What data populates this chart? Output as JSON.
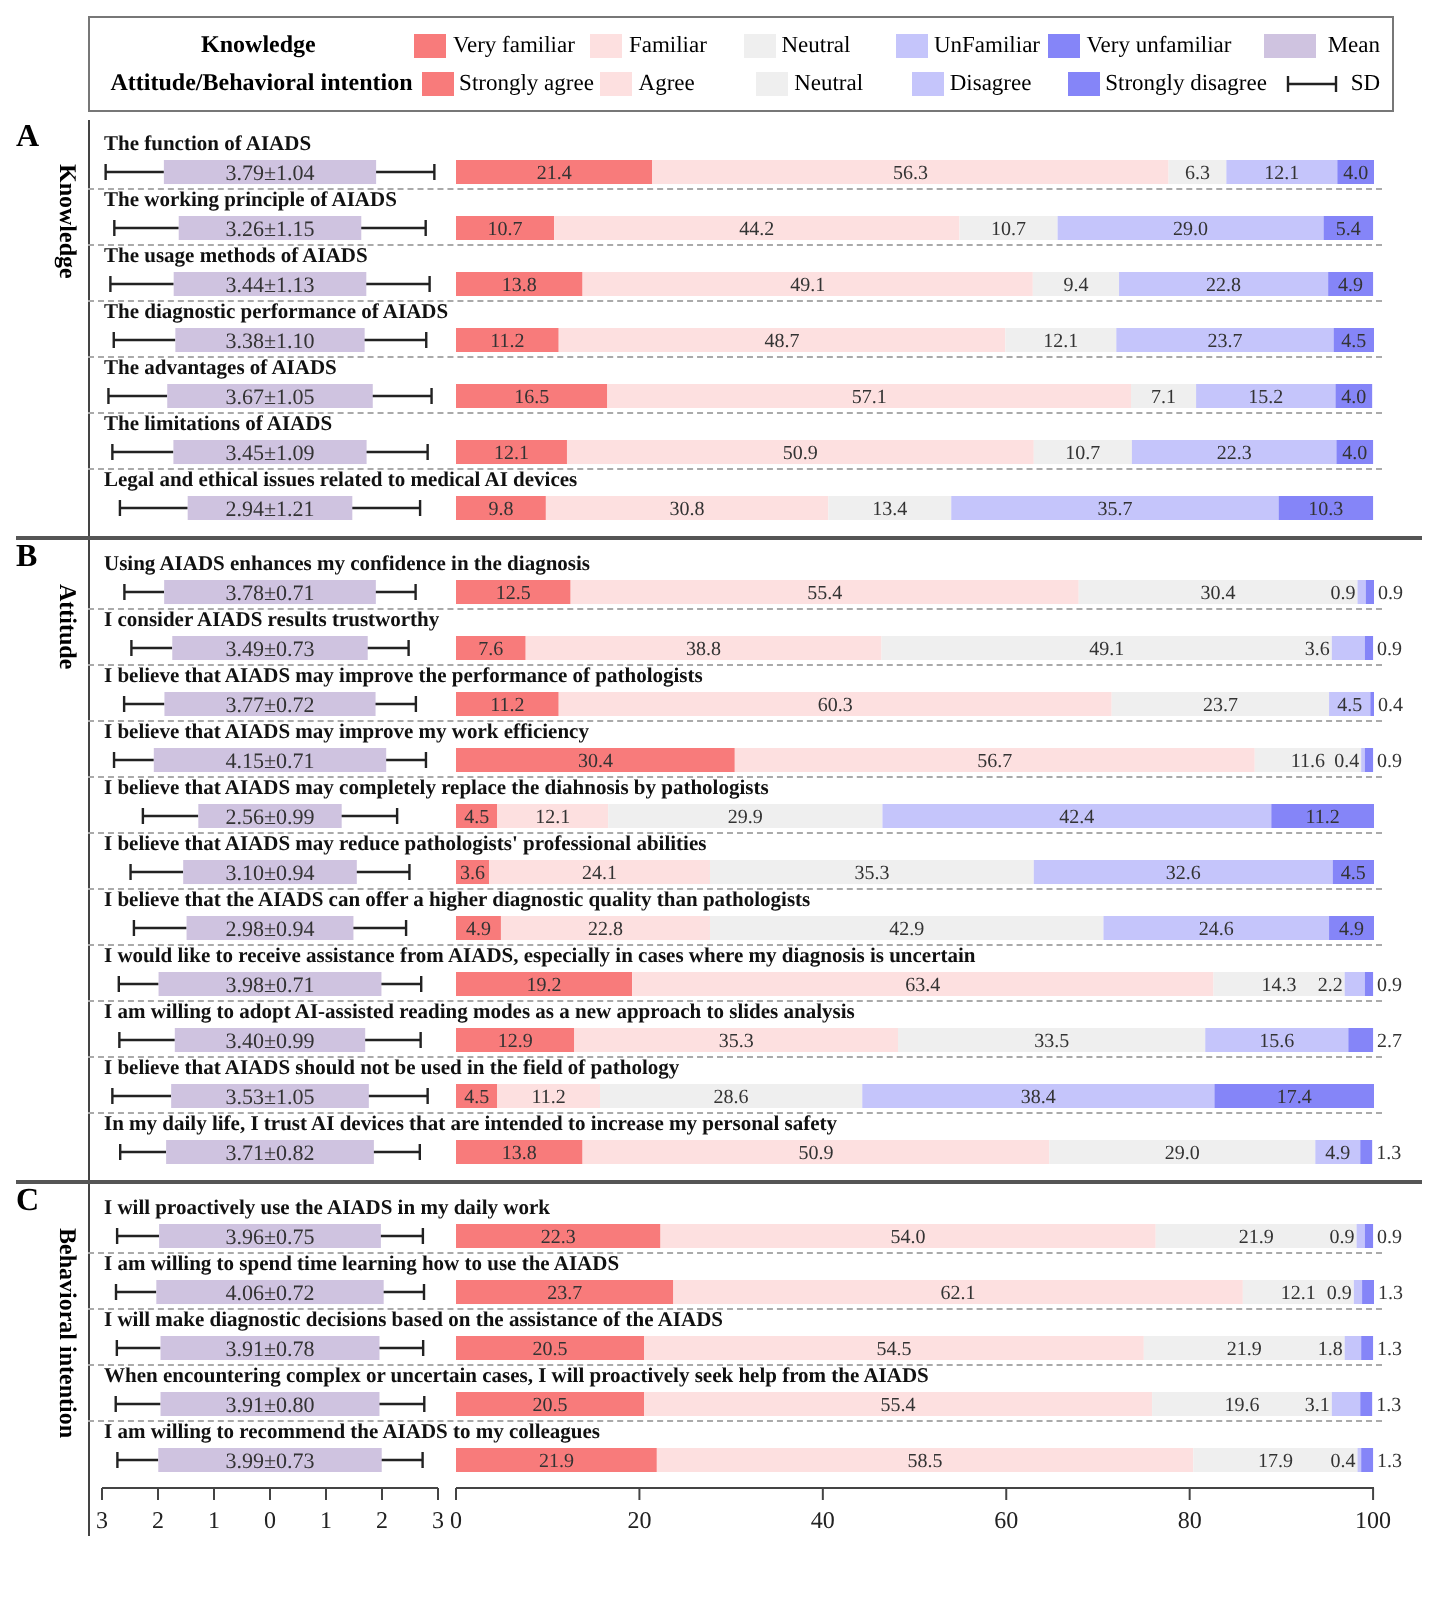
{
  "chart_data": [
    {
      "type": "bar",
      "orientation": "horizontal",
      "title": "A",
      "ylabel": "Knowledge",
      "legend": "top",
      "tick_labels": "y",
      "categories": [
        "The function of AIADS",
        "The working principle of AIADS",
        "The usage methods of AIADS",
        "The diagnostic performance of AIADS",
        "The advantages of AIADS",
        "The limitations of AIADS",
        "Legal and ethical issues related to medical AI devices"
      ],
      "series": [
        {
          "name": "Mean",
          "color": "#cfc3e0",
          "base": [
            -1.895,
            -1.63,
            -1.72,
            -1.69,
            -1.835,
            -1.725,
            -1.47
          ],
          "values": [
            3.79,
            3.26,
            3.44,
            3.38,
            3.67,
            3.45,
            2.94
          ],
          "errors": [
            1.04,
            1.15,
            1.13,
            1.1,
            1.05,
            1.09,
            1.21
          ],
          "value_labels": [
            "3.79±1.04",
            "3.26±1.15",
            "3.44±1.13",
            "3.38±1.10",
            "3.67±1.05",
            "3.45±1.09",
            "2.94±1.21"
          ]
        }
      ],
      "xlim": [
        -3,
        3
      ]
    },
    {
      "type": "bar",
      "orientation": "horizontal",
      "stacked": true,
      "legend_title": "Knowledge",
      "legend": "top",
      "tick_labels": false,
      "categories": [
        null,
        null,
        null,
        null,
        null,
        null,
        null
      ],
      "series": [
        {
          "name": "Very familiar",
          "color": "#f87b7b",
          "values": [
            21.4,
            10.7,
            13.8,
            11.2,
            16.5,
            12.1,
            9.8
          ],
          "value_labels": [
            "21.4",
            "10.7",
            "13.8",
            "11.2",
            "16.5",
            "12.1",
            "9.8"
          ]
        },
        {
          "name": "Familiar",
          "color": "#fde0e0",
          "values": [
            56.3,
            44.2,
            49.1,
            48.7,
            57.1,
            50.9,
            30.8
          ],
          "value_labels": [
            "56.3",
            "44.2",
            "49.1",
            "48.7",
            "57.1",
            "50.9",
            "30.8"
          ]
        },
        {
          "name": "Neutral",
          "color": "#efefef",
          "values": [
            6.3,
            10.7,
            9.4,
            12.1,
            7.1,
            10.7,
            13.4
          ],
          "value_labels": [
            "6.3",
            "10.7",
            "9.4",
            "12.1",
            "7.1",
            "10.7",
            "13.4"
          ]
        },
        {
          "name": "UnFamiliar",
          "color": "#c5c5fb",
          "values": [
            12.1,
            29.0,
            22.8,
            23.7,
            15.2,
            22.3,
            35.7
          ],
          "value_labels": [
            "12.1",
            "29.0",
            "22.8",
            "23.7",
            "15.2",
            "22.3",
            "35.7"
          ]
        },
        {
          "name": "Very unfamiliar",
          "color": "#8585f8",
          "values": [
            4.0,
            5.4,
            4.9,
            4.5,
            4.0,
            4.0,
            10.3
          ],
          "value_labels": [
            "4.0",
            "5.4",
            "4.9",
            "4.5",
            "4.0",
            "4.0",
            "10.3"
          ]
        }
      ],
      "xlim": [
        0,
        100.1
      ]
    },
    {
      "type": "bar",
      "orientation": "horizontal",
      "title": "B",
      "ylabel": "Attitude",
      "tick_labels": "y",
      "annotations": [
        "SD"
      ],
      "categories": [
        "Using AIADS enhances my confidence in the diagnosis",
        "I consider AIADS results trustworthy",
        "I believe that AIADS may improve the performance of pathologists",
        "I believe that AIADS may improve my work efficiency",
        "I believe that AIADS may completely replace the diahnosis by pathologists",
        "I believe that AIADS may reduce pathologists' professional abilities",
        "I believe that the AIADS can offer a higher diagnostic quality than pathologists",
        "I would like to receive assistance from AIADS, especially in cases where my diagnosis is uncertain",
        "I am willing to adopt AI-assisted reading modes as a new approach to slides analysis",
        "I believe that AIADS should not be used in the field of pathology",
        "In my daily life, I trust AI devices that are intended to increase my personal safety"
      ],
      "series": [
        {
          "color": "#cfc3e0",
          "base": [
            -1.89,
            -1.745,
            -1.885,
            -2.075,
            -1.28,
            -1.55,
            -1.49,
            -1.99,
            -1.7,
            -1.765,
            -1.855
          ],
          "values": [
            3.78,
            3.49,
            3.77,
            4.15,
            2.56,
            3.1,
            2.98,
            3.98,
            3.4,
            3.53,
            3.71
          ],
          "errors": [
            0.71,
            0.73,
            0.72,
            0.71,
            0.99,
            0.94,
            0.94,
            0.71,
            0.99,
            1.05,
            0.82
          ],
          "value_labels": [
            "3.78±0.71",
            "3.49±0.73",
            "3.77±0.72",
            "4.15±0.71",
            "2.56±0.99",
            "3.10±0.94",
            "2.98±0.94",
            "3.98±0.71",
            "3.40±0.99",
            "3.53±1.05",
            "3.71±0.82"
          ]
        }
      ],
      "xlim": [
        -3,
        3
      ]
    },
    {
      "type": "bar",
      "orientation": "horizontal",
      "stacked": true,
      "legend_title": "Attitude/Behavioral intention",
      "legend": "top",
      "tick_labels": false,
      "categories": [
        null,
        null,
        null,
        null,
        null,
        null,
        null,
        null,
        null,
        null,
        null
      ],
      "series": [
        {
          "name": "Strongly agree",
          "color": "#f87b7b",
          "values": [
            12.5,
            7.6,
            11.2,
            30.4,
            4.5,
            3.6,
            4.9,
            19.2,
            12.9,
            4.5,
            13.8
          ],
          "value_labels": [
            "12.5",
            "7.6",
            "11.2",
            "30.4",
            "4.5",
            "3.6",
            "4.9",
            "19.2",
            "12.9",
            "4.5",
            "13.8"
          ]
        },
        {
          "name": "Agree",
          "color": "#fde0e0",
          "values": [
            55.4,
            38.8,
            60.3,
            56.7,
            12.1,
            24.1,
            22.8,
            63.4,
            35.3,
            11.2,
            50.9
          ],
          "value_labels": [
            "55.4",
            "38.8",
            "60.3",
            "56.7",
            "12.1",
            "24.1",
            "22.8",
            "63.4",
            "35.3",
            "11.2",
            "50.9"
          ]
        },
        {
          "name": "Neutral",
          "color": "#efefef",
          "values": [
            30.4,
            49.1,
            23.7,
            11.6,
            29.9,
            35.3,
            42.9,
            14.3,
            33.5,
            28.6,
            29.0
          ],
          "value_labels": [
            "30.4",
            "49.1",
            "23.7",
            "11.6",
            "29.9",
            "35.3",
            "42.9",
            "14.3",
            "33.5",
            "28.6",
            "29.0"
          ]
        },
        {
          "name": "Disagree",
          "color": "#c5c5fb",
          "values": [
            0.9,
            3.6,
            4.5,
            0.4,
            42.4,
            32.6,
            24.6,
            2.2,
            15.6,
            38.4,
            4.9
          ],
          "value_labels": [
            "0.9",
            "3.6",
            "4.5",
            "0.4",
            "42.4",
            "32.6",
            "24.6",
            "2.2",
            "15.6",
            "38.4",
            "4.9"
          ]
        },
        {
          "name": "Strongly disagree",
          "color": "#8585f8",
          "values": [
            0.9,
            0.9,
            0.4,
            0.9,
            11.2,
            4.5,
            4.9,
            0.9,
            2.7,
            17.4,
            1.3
          ],
          "value_labels": [
            "0.9",
            "0.9",
            "0.4",
            "0.9",
            "11.2",
            "4.5",
            "4.9",
            "0.9",
            "2.7",
            "17.4",
            "1.3"
          ]
        }
      ],
      "xlim": [
        0,
        100.1
      ]
    },
    {
      "type": "bar",
      "orientation": "horizontal",
      "title": "C",
      "ylabel": "Behavioral intention",
      "categories": [
        "I will proactively use the AIADS in my daily work",
        "I am willing to spend time learning how to use the AIADS",
        "I will make diagnostic decisions based on the assistance of the AIADS",
        "When encountering complex or uncertain cases, I will proactively seek help from the AIADS",
        "I am willing to recommend the AIADS to my colleagues"
      ],
      "series": [
        {
          "color": "#cfc3e0",
          "base": [
            -1.98,
            -2.03,
            -1.955,
            -1.955,
            -1.995
          ],
          "values": [
            3.96,
            4.06,
            3.91,
            3.91,
            3.99
          ],
          "errors": [
            0.75,
            0.72,
            0.78,
            0.8,
            0.73
          ],
          "value_labels": [
            "3.96±0.75",
            "4.06±0.72",
            "3.91±0.78",
            "3.91±0.80",
            "3.99±0.73"
          ]
        }
      ],
      "xlim": [
        -3,
        3
      ],
      "xticks": [
        {
          "value": -3,
          "label": "3"
        },
        {
          "value": -2,
          "label": "2"
        },
        {
          "value": -1,
          "label": "1"
        },
        0,
        1,
        2,
        3
      ]
    },
    {
      "type": "bar",
      "orientation": "horizontal",
      "stacked": true,
      "categories": [
        null,
        null,
        null,
        null,
        null
      ],
      "series": [
        {
          "color": "#f87b7b",
          "values": [
            22.3,
            23.7,
            20.5,
            20.5,
            21.9
          ],
          "value_labels": [
            "22.3",
            "23.7",
            "20.5",
            "20.5",
            "21.9"
          ]
        },
        {
          "color": "#fde0e0",
          "values": [
            54.0,
            62.1,
            54.5,
            55.4,
            58.5
          ],
          "value_labels": [
            "54.0",
            "62.1",
            "54.5",
            "55.4",
            "58.5"
          ]
        },
        {
          "color": "#efefef",
          "values": [
            21.9,
            12.1,
            21.9,
            19.6,
            17.9
          ],
          "value_labels": [
            "21.9",
            "12.1",
            "21.9",
            "19.6",
            "17.9"
          ]
        },
        {
          "color": "#c5c5fb",
          "values": [
            0.9,
            0.9,
            1.8,
            3.1,
            0.4
          ],
          "value_labels": [
            "0.9",
            "0.9",
            "1.8",
            "3.1",
            "0.4"
          ]
        },
        {
          "color": "#8585f8",
          "values": [
            0.9,
            1.3,
            1.3,
            1.3,
            1.3
          ],
          "value_labels": [
            "0.9",
            "1.3",
            "1.3",
            "1.3",
            "1.3"
          ]
        }
      ],
      "xlim": [
        0,
        100.1
      ],
      "xticks": [
        0,
        20,
        40,
        60,
        80,
        100
      ]
    }
  ]
}
